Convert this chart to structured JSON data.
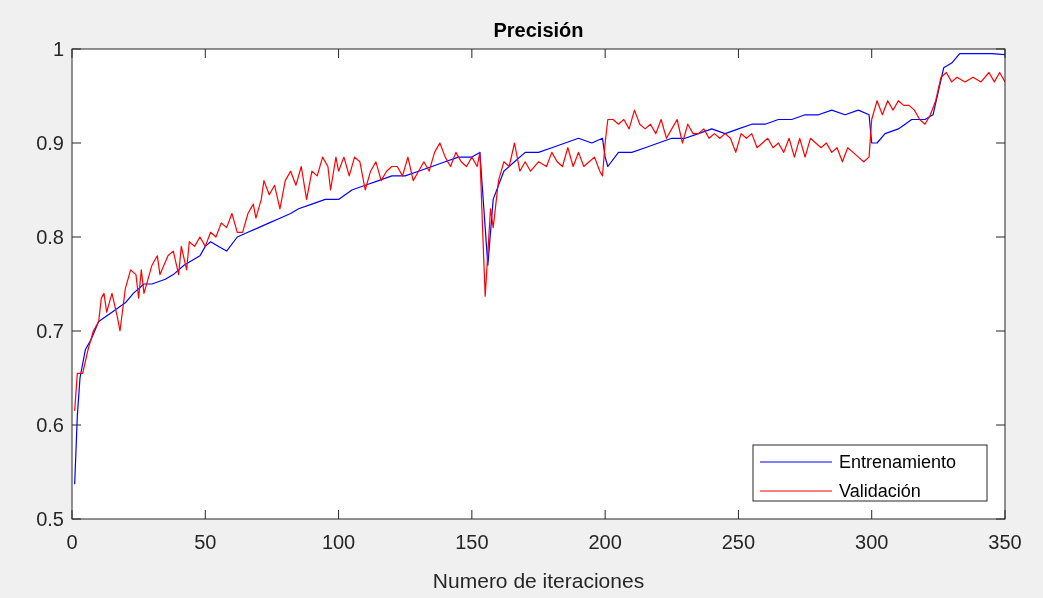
{
  "chart_data": {
    "type": "line",
    "title": "Precisión",
    "xlabel": "Numero de iteraciones",
    "xlim": [
      0,
      350
    ],
    "xticks": [
      0,
      50,
      100,
      150,
      200,
      250,
      300,
      350
    ],
    "ylim": [
      0.5,
      1
    ],
    "yticks": [
      0.5,
      0.6,
      0.7,
      0.8,
      0.9,
      {
        "value": 1,
        "label": "1"
      }
    ],
    "grid": false,
    "legend": "bottom right",
    "marker": "none",
    "line_style": "solid",
    "series": [
      {
        "name": "Entrenamiento",
        "color": "#0000ff",
        "x": [
          1,
          2,
          3,
          5,
          7,
          10,
          15,
          20,
          23,
          27,
          30,
          35,
          38,
          42,
          45,
          48,
          50,
          52,
          55,
          58,
          62,
          66,
          70,
          74,
          78,
          82,
          85,
          90,
          95,
          100,
          105,
          110,
          115,
          120,
          125,
          130,
          135,
          140,
          145,
          150,
          153,
          155,
          156,
          158,
          162,
          166,
          170,
          175,
          180,
          185,
          190,
          195,
          199,
          200,
          201,
          205,
          210,
          215,
          220,
          225,
          230,
          235,
          240,
          245,
          250,
          255,
          260,
          265,
          270,
          275,
          280,
          285,
          290,
          295,
          299,
          300,
          302,
          305,
          310,
          315,
          320,
          323,
          325,
          327,
          330,
          333,
          340,
          345,
          350
        ],
        "values": [
          0.537,
          0.61,
          0.65,
          0.68,
          0.69,
          0.71,
          0.72,
          0.73,
          0.74,
          0.75,
          0.75,
          0.755,
          0.76,
          0.77,
          0.775,
          0.78,
          0.79,
          0.795,
          0.79,
          0.785,
          0.8,
          0.805,
          0.81,
          0.815,
          0.82,
          0.825,
          0.83,
          0.835,
          0.84,
          0.84,
          0.85,
          0.855,
          0.86,
          0.865,
          0.865,
          0.87,
          0.875,
          0.88,
          0.885,
          0.885,
          0.89,
          0.81,
          0.77,
          0.84,
          0.87,
          0.88,
          0.89,
          0.89,
          0.895,
          0.9,
          0.905,
          0.9,
          0.905,
          0.885,
          0.875,
          0.89,
          0.89,
          0.895,
          0.9,
          0.905,
          0.905,
          0.91,
          0.915,
          0.91,
          0.915,
          0.92,
          0.92,
          0.925,
          0.925,
          0.93,
          0.93,
          0.935,
          0.93,
          0.935,
          0.93,
          0.9,
          0.9,
          0.91,
          0.915,
          0.925,
          0.925,
          0.93,
          0.955,
          0.98,
          0.985,
          0.995,
          0.995,
          0.995,
          0.994
        ]
      },
      {
        "name": "Validación",
        "color": "#ff0000",
        "x": [
          1,
          2,
          4,
          6,
          8,
          10,
          11,
          12,
          13,
          15,
          17,
          18,
          20,
          22,
          24,
          25,
          26,
          27,
          30,
          32,
          33,
          36,
          38,
          40,
          41,
          43,
          44,
          46,
          48,
          50,
          52,
          54,
          56,
          58,
          60,
          62,
          64,
          66,
          68,
          69,
          71,
          72,
          74,
          76,
          78,
          80,
          82,
          84,
          86,
          88,
          90,
          92,
          94,
          96,
          97,
          99,
          100,
          102,
          104,
          106,
          108,
          110,
          112,
          114,
          116,
          118,
          120,
          122,
          124,
          126,
          128,
          130,
          132,
          134,
          136,
          138,
          140,
          142,
          144,
          146,
          148,
          150,
          152,
          153,
          154,
          155,
          157,
          158,
          160,
          162,
          164,
          166,
          168,
          170,
          172,
          175,
          178,
          180,
          182,
          184,
          186,
          188,
          190,
          192,
          194,
          196,
          198,
          199,
          200,
          201,
          203,
          205,
          207,
          209,
          211,
          213,
          215,
          217,
          219,
          221,
          223,
          225,
          227,
          229,
          231,
          233,
          235,
          237,
          239,
          241,
          243,
          245,
          247,
          249,
          251,
          253,
          255,
          257,
          259,
          261,
          263,
          265,
          267,
          269,
          271,
          273,
          275,
          277,
          279,
          281,
          283,
          285,
          287,
          289,
          291,
          293,
          295,
          297,
          299,
          300,
          302,
          304,
          306,
          308,
          310,
          312,
          314,
          316,
          318,
          320,
          322,
          324,
          326,
          328,
          330,
          332,
          335,
          338,
          341,
          344,
          346,
          348,
          350
        ],
        "values": [
          0.615,
          0.655,
          0.655,
          0.68,
          0.7,
          0.71,
          0.735,
          0.74,
          0.72,
          0.74,
          0.715,
          0.7,
          0.745,
          0.765,
          0.76,
          0.735,
          0.765,
          0.74,
          0.77,
          0.78,
          0.76,
          0.78,
          0.785,
          0.76,
          0.79,
          0.765,
          0.795,
          0.79,
          0.8,
          0.79,
          0.805,
          0.8,
          0.815,
          0.81,
          0.825,
          0.805,
          0.805,
          0.825,
          0.835,
          0.82,
          0.84,
          0.86,
          0.845,
          0.855,
          0.83,
          0.86,
          0.87,
          0.855,
          0.875,
          0.84,
          0.87,
          0.865,
          0.885,
          0.875,
          0.85,
          0.885,
          0.87,
          0.885,
          0.865,
          0.885,
          0.88,
          0.85,
          0.87,
          0.88,
          0.86,
          0.87,
          0.875,
          0.875,
          0.865,
          0.885,
          0.86,
          0.87,
          0.88,
          0.87,
          0.89,
          0.9,
          0.885,
          0.875,
          0.89,
          0.88,
          0.875,
          0.885,
          0.875,
          0.89,
          0.81,
          0.737,
          0.83,
          0.81,
          0.86,
          0.88,
          0.875,
          0.9,
          0.87,
          0.88,
          0.87,
          0.88,
          0.875,
          0.89,
          0.88,
          0.875,
          0.895,
          0.875,
          0.89,
          0.875,
          0.88,
          0.885,
          0.87,
          0.865,
          0.9,
          0.925,
          0.925,
          0.92,
          0.925,
          0.915,
          0.935,
          0.92,
          0.915,
          0.92,
          0.91,
          0.925,
          0.905,
          0.915,
          0.925,
          0.9,
          0.92,
          0.91,
          0.91,
          0.915,
          0.905,
          0.91,
          0.905,
          0.91,
          0.905,
          0.89,
          0.91,
          0.905,
          0.91,
          0.895,
          0.9,
          0.905,
          0.895,
          0.9,
          0.89,
          0.905,
          0.885,
          0.905,
          0.885,
          0.905,
          0.9,
          0.895,
          0.9,
          0.89,
          0.895,
          0.88,
          0.895,
          0.89,
          0.885,
          0.88,
          0.885,
          0.925,
          0.945,
          0.93,
          0.945,
          0.935,
          0.945,
          0.94,
          0.94,
          0.935,
          0.925,
          0.92,
          0.93,
          0.945,
          0.97,
          0.975,
          0.965,
          0.97,
          0.965,
          0.97,
          0.965,
          0.975,
          0.965,
          0.975,
          0.965
        ]
      }
    ]
  }
}
